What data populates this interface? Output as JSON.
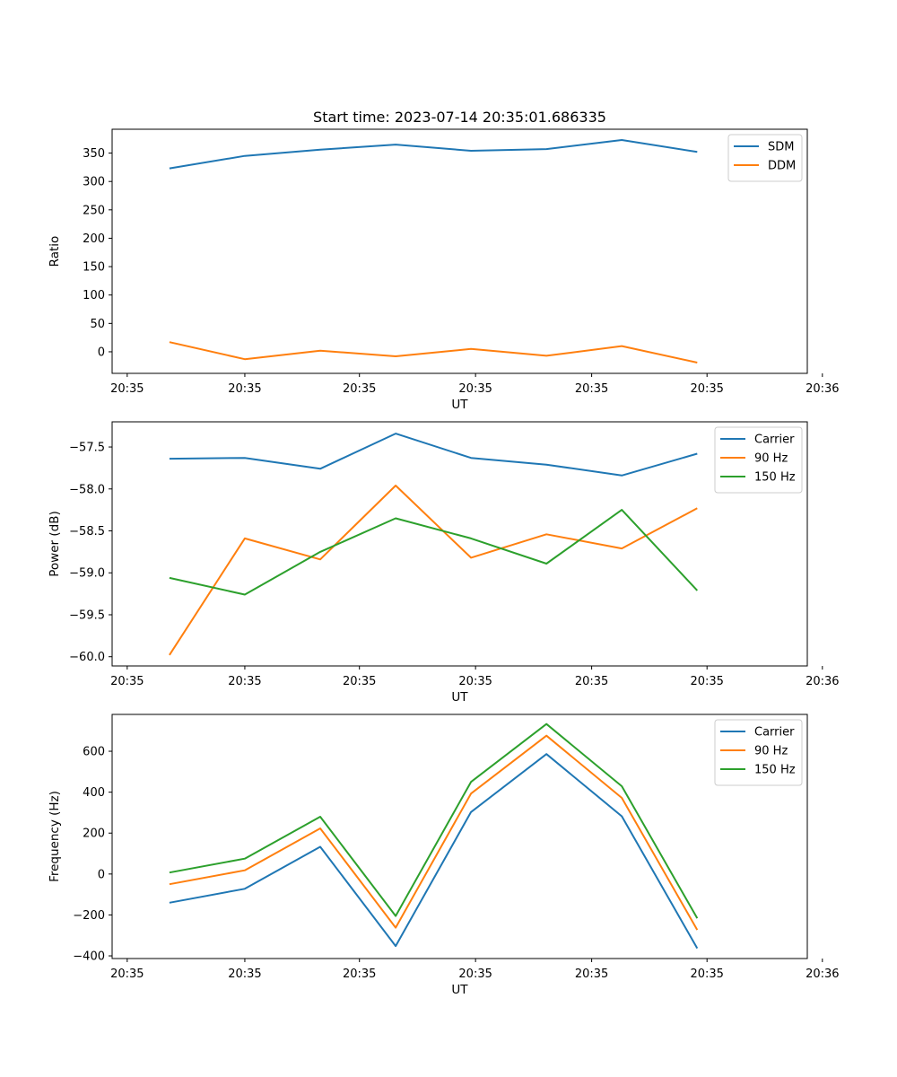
{
  "figure_title": "Start time: 2023-07-14 20:35:01.686335",
  "chart_data": [
    {
      "type": "line",
      "xlabel": "UT",
      "ylabel": "Ratio",
      "x_ticks": [
        "20:35",
        "20:35",
        "20:35",
        "20:35",
        "20:35",
        "20:35",
        "20:36"
      ],
      "x": [
        1,
        2,
        3,
        4,
        5,
        6,
        7,
        8
      ],
      "xlim": [
        0.24,
        9.46
      ],
      "ylim": [
        -38,
        392
      ],
      "y_ticks": [
        0,
        50,
        100,
        150,
        200,
        250,
        300,
        350
      ],
      "legend": "top-right",
      "series": [
        {
          "name": "SDM",
          "color": "#1f77b4",
          "values": [
            323,
            345,
            356,
            365,
            354,
            357,
            373,
            352
          ]
        },
        {
          "name": "DDM",
          "color": "#ff7f0e",
          "values": [
            17,
            -13,
            2,
            -8,
            5,
            -7,
            10,
            -19
          ]
        }
      ]
    },
    {
      "type": "line",
      "xlabel": "UT",
      "ylabel": "Power (dB)",
      "x_ticks": [
        "20:35",
        "20:35",
        "20:35",
        "20:35",
        "20:35",
        "20:35",
        "20:36"
      ],
      "x": [
        1,
        2,
        3,
        4,
        5,
        6,
        7,
        8
      ],
      "xlim": [
        0.24,
        9.46
      ],
      "ylim": [
        -60.11,
        -57.2
      ],
      "y_ticks": [
        -60.0,
        -59.5,
        -59.0,
        -58.5,
        -58.0,
        -57.5
      ],
      "legend": "top-right",
      "series": [
        {
          "name": "Carrier",
          "color": "#1f77b4",
          "values": [
            -57.64,
            -57.63,
            -57.76,
            -57.34,
            -57.63,
            -57.71,
            -57.84,
            -57.58
          ]
        },
        {
          "name": "90 Hz",
          "color": "#ff7f0e",
          "values": [
            -59.98,
            -58.59,
            -58.84,
            -57.96,
            -58.82,
            -58.54,
            -58.71,
            -58.23
          ]
        },
        {
          "name": "150 Hz",
          "color": "#2ca02c",
          "values": [
            -59.06,
            -59.26,
            -58.75,
            -58.35,
            -58.59,
            -58.89,
            -58.25,
            -59.21
          ]
        }
      ]
    },
    {
      "type": "line",
      "xlabel": "UT",
      "ylabel": "Frequency (Hz)",
      "x_ticks": [
        "20:35",
        "20:35",
        "20:35",
        "20:35",
        "20:35",
        "20:35",
        "20:36"
      ],
      "x": [
        1,
        2,
        3,
        4,
        5,
        6,
        7,
        8
      ],
      "xlim": [
        0.24,
        9.46
      ],
      "ylim": [
        -413,
        780
      ],
      "y_ticks": [
        -400,
        -200,
        0,
        200,
        400,
        600
      ],
      "legend": "top-right",
      "series": [
        {
          "name": "Carrier",
          "color": "#1f77b4",
          "values": [
            -140,
            -72,
            133,
            -352,
            303,
            586,
            282,
            -363
          ]
        },
        {
          "name": "90 Hz",
          "color": "#ff7f0e",
          "values": [
            -50,
            18,
            223,
            -262,
            393,
            676,
            372,
            -273
          ]
        },
        {
          "name": "150 Hz",
          "color": "#2ca02c",
          "values": [
            7,
            75,
            280,
            -205,
            450,
            733,
            429,
            -216
          ]
        }
      ]
    }
  ]
}
